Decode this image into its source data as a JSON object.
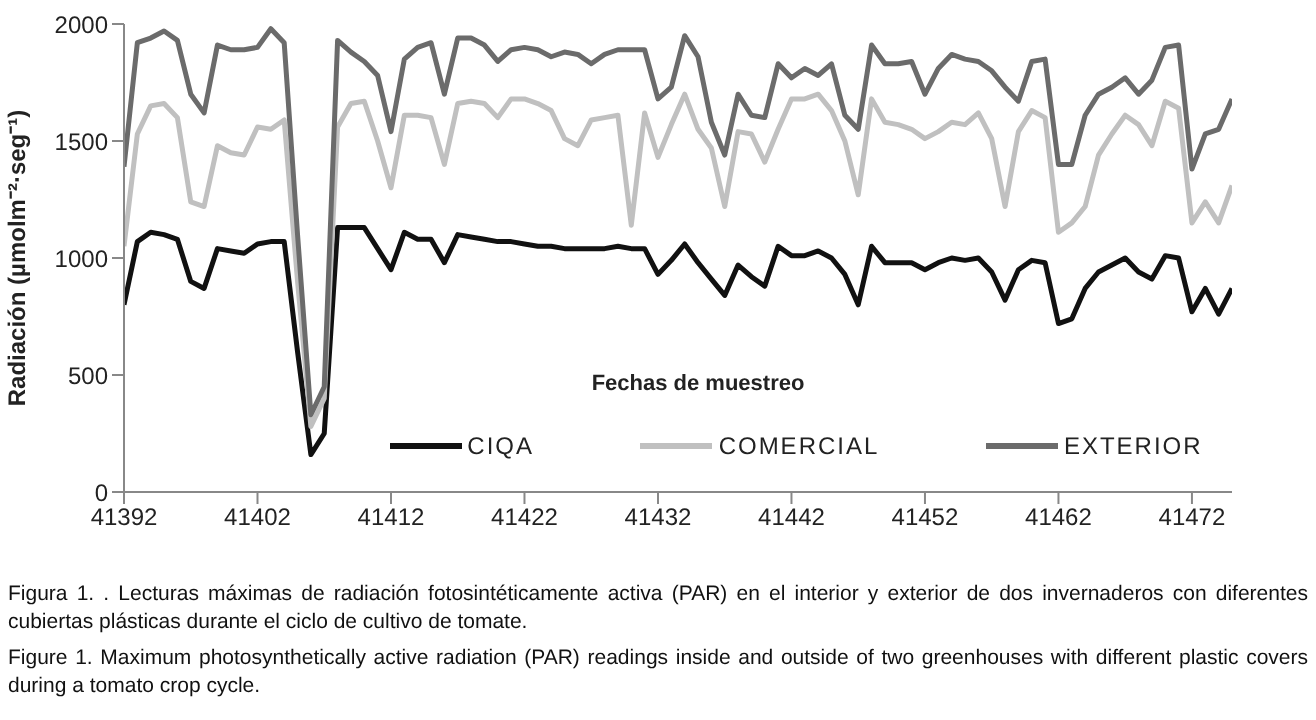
{
  "chart_data": {
    "type": "line",
    "ylabel": "Radiación (µmolm⁻²·seg⁻¹)",
    "xlabel": "Fechas de muestreo",
    "annotations": [
      "Figura 1. . Lecturas máximas de radiación fotosintéticamente activa (PAR) en el interior y exterior de dos invernaderos con diferentes cubiertas plásticas durante el ciclo de cultivo de tomate.",
      "Figure 1. Maximum photosynthetically active radiation (PAR) readings inside and outside of two greenhouses with different plastic covers during a tomato crop cycle."
    ],
    "x": [
      41392,
      41393,
      41394,
      41395,
      41396,
      41397,
      41398,
      41399,
      41400,
      41401,
      41402,
      41403,
      41404,
      41405,
      41406,
      41407,
      41408,
      41409,
      41410,
      41411,
      41412,
      41413,
      41414,
      41415,
      41416,
      41417,
      41418,
      41419,
      41420,
      41421,
      41422,
      41423,
      41424,
      41425,
      41426,
      41427,
      41428,
      41429,
      41430,
      41431,
      41432,
      41433,
      41434,
      41435,
      41436,
      41437,
      41438,
      41439,
      41440,
      41441,
      41442,
      41443,
      41444,
      41445,
      41446,
      41447,
      41448,
      41449,
      41450,
      41451,
      41452,
      41453,
      41454,
      41455,
      41456,
      41457,
      41458,
      41459,
      41460,
      41461,
      41462,
      41463,
      41464,
      41465,
      41466,
      41467,
      41468,
      41469,
      41470,
      41471,
      41472,
      41473,
      41474,
      41475
    ],
    "series": [
      {
        "name": "CIQA",
        "color": "#111111",
        "values": [
          800,
          1070,
          1110,
          1100,
          1080,
          900,
          870,
          1040,
          1030,
          1020,
          1060,
          1070,
          1070,
          600,
          160,
          250,
          1130,
          1130,
          1130,
          1040,
          950,
          1110,
          1080,
          1080,
          980,
          1100,
          1090,
          1080,
          1070,
          1070,
          1060,
          1050,
          1050,
          1040,
          1040,
          1040,
          1040,
          1050,
          1040,
          1040,
          930,
          990,
          1060,
          980,
          910,
          840,
          970,
          920,
          880,
          1050,
          1010,
          1010,
          1030,
          1000,
          930,
          800,
          1050,
          980,
          980,
          980,
          950,
          980,
          1000,
          990,
          1000,
          940,
          820,
          950,
          990,
          980,
          720,
          740,
          870,
          940,
          970,
          1000,
          940,
          910,
          1010,
          1000,
          770,
          870,
          760,
          870
        ]
      },
      {
        "name": "COMERCIAL",
        "color": "#c0c0c0",
        "values": [
          1050,
          1530,
          1650,
          1660,
          1600,
          1240,
          1220,
          1480,
          1450,
          1440,
          1560,
          1550,
          1590,
          900,
          280,
          400,
          1560,
          1660,
          1670,
          1500,
          1300,
          1610,
          1610,
          1600,
          1400,
          1660,
          1670,
          1660,
          1600,
          1680,
          1680,
          1660,
          1630,
          1510,
          1480,
          1590,
          1600,
          1610,
          1140,
          1620,
          1430,
          1570,
          1700,
          1550,
          1470,
          1220,
          1540,
          1530,
          1410,
          1550,
          1680,
          1680,
          1700,
          1630,
          1500,
          1270,
          1680,
          1580,
          1570,
          1550,
          1510,
          1540,
          1580,
          1570,
          1620,
          1510,
          1220,
          1540,
          1630,
          1600,
          1110,
          1150,
          1220,
          1440,
          1530,
          1610,
          1570,
          1480,
          1670,
          1640,
          1150,
          1240,
          1150,
          1310
        ]
      },
      {
        "name": "EXTERIOR",
        "color": "#6b6b6b",
        "values": [
          1390,
          1920,
          1940,
          1970,
          1930,
          1700,
          1620,
          1910,
          1890,
          1890,
          1900,
          1980,
          1920,
          1100,
          330,
          450,
          1930,
          1880,
          1840,
          1780,
          1540,
          1850,
          1900,
          1920,
          1700,
          1940,
          1940,
          1910,
          1840,
          1890,
          1900,
          1890,
          1860,
          1880,
          1870,
          1830,
          1870,
          1890,
          1890,
          1890,
          1680,
          1730,
          1950,
          1860,
          1580,
          1440,
          1700,
          1610,
          1600,
          1830,
          1770,
          1810,
          1780,
          1830,
          1610,
          1550,
          1910,
          1830,
          1830,
          1840,
          1700,
          1810,
          1870,
          1850,
          1840,
          1800,
          1730,
          1670,
          1840,
          1850,
          1400,
          1400,
          1610,
          1700,
          1730,
          1770,
          1700,
          1760,
          1900,
          1910,
          1380,
          1530,
          1550,
          1680
        ]
      }
    ],
    "xlim": [
      41392,
      41475
    ],
    "xticks": [
      41392,
      41402,
      41412,
      41422,
      41432,
      41442,
      41452,
      41462,
      41472
    ],
    "ylim": [
      0,
      2000
    ],
    "yticks": [
      0,
      500,
      1000,
      1500,
      2000
    ],
    "legend": "bottom"
  }
}
